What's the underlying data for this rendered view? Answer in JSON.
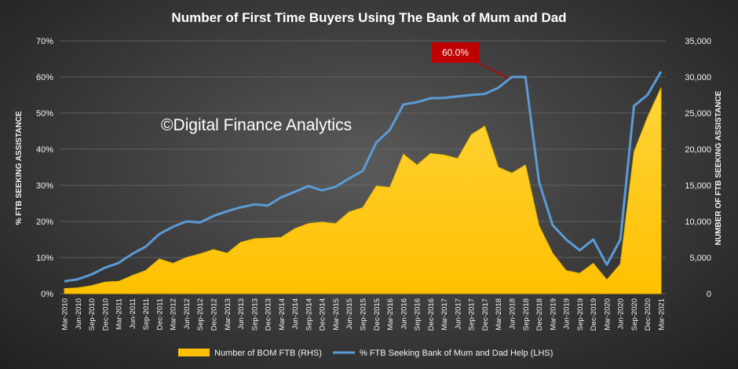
{
  "chart_data": {
    "type": "area+line",
    "title": "Number of First Time Buyers Using The Bank of Mum and Dad",
    "watermark": "©Digital Finance Analytics",
    "ylabel_left": "% FTB SEEKING ASSISTANCE",
    "ylabel_right": "NUMBER OF FTB SEEKING ASSISTANCE",
    "yticks_left": [
      "0%",
      "10%",
      "20%",
      "30%",
      "40%",
      "50%",
      "60%",
      "70%"
    ],
    "yticks_right": [
      "0",
      "5,000",
      "10,000",
      "15,000",
      "20,000",
      "25,000",
      "30,000",
      "35,000"
    ],
    "ylim_left": [
      0,
      70
    ],
    "ylim_right": [
      0,
      35000
    ],
    "grid": true,
    "legend_position": "bottom",
    "annotation": {
      "label": "60.0%",
      "x": "Jun-2018"
    },
    "x": [
      "Mar-2010",
      "Jun-2010",
      "Sep-2010",
      "Dec-2010",
      "Mar-2011",
      "Jun-2011",
      "Sep-2011",
      "Dec-2011",
      "Mar-2012",
      "Jun-2012",
      "Sep-2012",
      "Dec-2012",
      "Mar-2013",
      "Jun-2013",
      "Sep-2013",
      "Dec-2013",
      "Mar-2014",
      "Jun-2014",
      "Sep-2014",
      "Dec-2014",
      "Mar-2015",
      "Jun-2015",
      "Sep-2015",
      "Dec-2015",
      "Mar-2016",
      "Jun-2016",
      "Sep-2016",
      "Dec-2016",
      "Mar-2017",
      "Jun-2017",
      "Sep-2017",
      "Dec-2017",
      "Mar-2018",
      "Jun-2018",
      "Sep-2018",
      "Dec-2018",
      "Mar-2019",
      "Jun-2019",
      "Sep-2019",
      "Dec-2019",
      "Mar-2020",
      "Jun-2020",
      "Sep-2020",
      "Dec-2020",
      "Mar-2021"
    ],
    "series": [
      {
        "name": "Number of BOM FTB (RHS)",
        "axis": "right",
        "type": "area",
        "color": "#ffc000",
        "values": [
          700,
          800,
          1100,
          1600,
          1700,
          2500,
          3200,
          4800,
          4200,
          5000,
          5500,
          6100,
          5600,
          7100,
          7600,
          7700,
          7800,
          9000,
          9700,
          9900,
          9700,
          11300,
          11900,
          14900,
          14700,
          19300,
          17800,
          19400,
          19200,
          18700,
          22000,
          23200,
          17500,
          16700,
          17800,
          9400,
          5600,
          3200,
          2800,
          4200,
          1900,
          4100,
          19600,
          24400,
          28500
        ]
      },
      {
        "name": "% FTB Seeking Bank of Mum and Dad Help (LHS)",
        "axis": "left",
        "type": "line",
        "color": "#5b9bd5",
        "values": [
          3.4,
          4.0,
          5.3,
          7.2,
          8.5,
          11.0,
          13.0,
          16.5,
          18.5,
          20.0,
          19.7,
          21.5,
          22.8,
          23.9,
          24.7,
          24.4,
          26.7,
          28.2,
          29.8,
          28.6,
          29.6,
          31.9,
          34.0,
          41.9,
          45.3,
          52.4,
          53.0,
          54.1,
          54.2,
          54.6,
          55.0,
          55.3,
          57.0,
          60.0,
          60.0,
          31.0,
          19.0,
          15.0,
          12.0,
          15.0,
          8.0,
          15.0,
          52.0,
          55.0,
          61.5
        ]
      }
    ]
  }
}
